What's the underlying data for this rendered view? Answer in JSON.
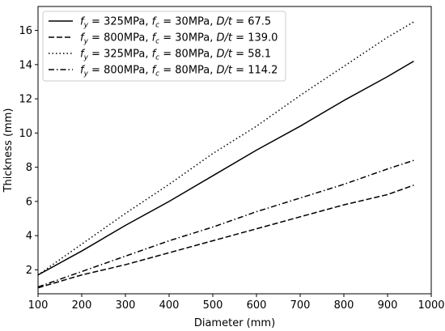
{
  "chart_data": {
    "type": "line",
    "xlabel": "Diameter (mm)",
    "ylabel": "Thickness (mm)",
    "xlim": [
      100,
      1000
    ],
    "ylim": [
      0.6,
      17.4
    ],
    "grid": false,
    "legend_position": "top-left",
    "x_ticks": [
      "100",
      "200",
      "300",
      "400",
      "500",
      "600",
      "700",
      "800",
      "900",
      "1000"
    ],
    "y_ticks": [
      "2",
      "4",
      "6",
      "8",
      "10",
      "12",
      "14",
      "16"
    ],
    "series": [
      {
        "name": "fy = 325MPa, fc = 30MPa, D/t = 67.5",
        "legend": {
          "a": "f",
          "a_sub": "y",
          "b": " = 325MPa, ",
          "c": "f",
          "c_sub": "c",
          "d": " = 30MPa, ",
          "e": "D/t",
          "f": " = 67.5"
        },
        "style": "solid",
        "color": "#000000",
        "x": [
          100,
          200,
          300,
          400,
          500,
          600,
          700,
          800,
          900,
          960
        ],
        "y": [
          1.7,
          3.1,
          4.6,
          6.0,
          7.5,
          9.0,
          10.4,
          11.9,
          13.3,
          14.2
        ]
      },
      {
        "name": "fy = 800MPa, fc = 30MPa, D/t = 139.0",
        "legend": {
          "a": "f",
          "a_sub": "y",
          "b": " = 800MPa, ",
          "c": "f",
          "c_sub": "c",
          "d": " = 30MPa, ",
          "e": "D/t",
          "f": " = 139.0"
        },
        "style": "dashed",
        "color": "#000000",
        "x": [
          100,
          200,
          300,
          400,
          500,
          600,
          700,
          800,
          900,
          960
        ],
        "y": [
          0.95,
          1.7,
          2.3,
          3.0,
          3.7,
          4.4,
          5.1,
          5.8,
          6.4,
          6.95
        ]
      },
      {
        "name": "fy = 325MPa, fc = 80MPa, D/t = 58.1",
        "legend": {
          "a": "f",
          "a_sub": "y",
          "b": " = 325MPa, ",
          "c": "f",
          "c_sub": "c",
          "d": " = 80MPa, ",
          "e": "D/t",
          "f": " = 58.1"
        },
        "style": "dotted",
        "color": "#000000",
        "x": [
          100,
          200,
          300,
          400,
          500,
          600,
          700,
          800,
          900,
          960
        ],
        "y": [
          1.7,
          3.5,
          5.3,
          7.0,
          8.8,
          10.4,
          12.2,
          13.9,
          15.6,
          16.5
        ]
      },
      {
        "name": "fy = 800MPa, fc = 80MPa, D/t = 114.2",
        "legend": {
          "a": "f",
          "a_sub": "y",
          "b": " = 800MPa, ",
          "c": "f",
          "c_sub": "c",
          "d": " = 80MPa, ",
          "e": "D/t",
          "f": " = 114.2"
        },
        "style": "dashdot",
        "color": "#000000",
        "x": [
          100,
          200,
          300,
          400,
          500,
          600,
          700,
          800,
          900,
          960
        ],
        "y": [
          1.0,
          1.9,
          2.8,
          3.7,
          4.5,
          5.4,
          6.2,
          7.0,
          7.9,
          8.4
        ]
      }
    ]
  }
}
